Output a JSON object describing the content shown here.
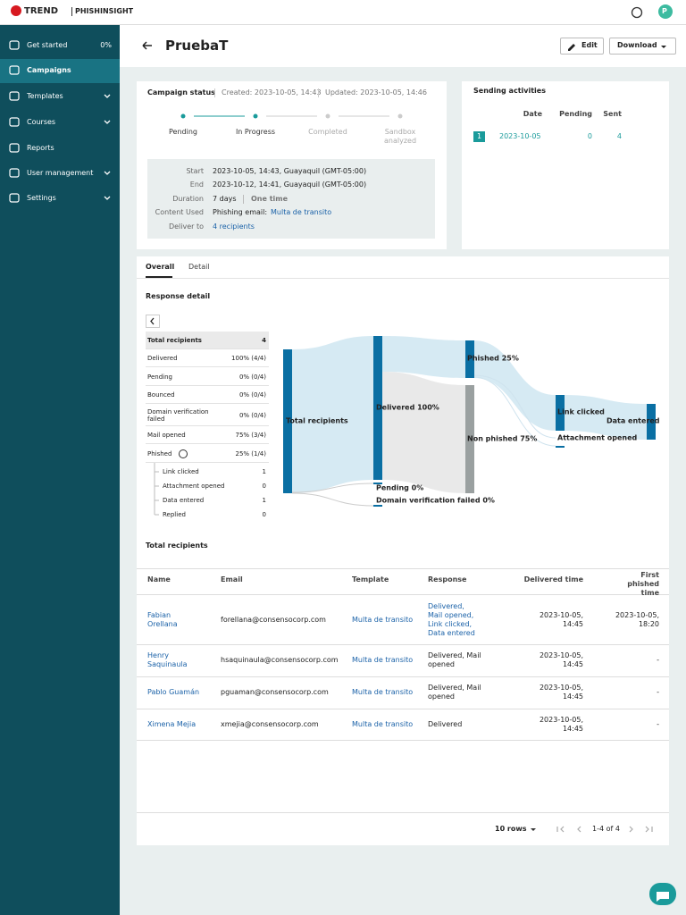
{
  "header": {
    "brand": "TREND",
    "product": "PHISHINSIGHT",
    "avatar": "P"
  },
  "sidebar": {
    "items": [
      {
        "label": "Get started",
        "badge": "0%"
      },
      {
        "label": "Campaigns",
        "active": true
      },
      {
        "label": "Templates",
        "expandable": true
      },
      {
        "label": "Courses",
        "expandable": true
      },
      {
        "label": "Reports"
      },
      {
        "label": "User management",
        "expandable": true
      },
      {
        "label": "Settings",
        "expandable": true
      }
    ]
  },
  "page": {
    "title": "PruebaT",
    "actions": [
      "Edit",
      "Download"
    ]
  },
  "campaign_status": {
    "title": "Campaign status",
    "created": "Created: 2023-10-05, 14:43",
    "updated": "Updated: 2023-10-05, 14:46",
    "steps": [
      "Pending",
      "In Progress",
      "Completed",
      "Sandbox analyzed"
    ],
    "details": [
      {
        "label": "Start",
        "value": "2023-10-05, 14:43, Guayaquil (GMT-05:00)"
      },
      {
        "label": "End",
        "value": "2023-10-12, 14:41, Guayaquil (GMT-05:00)"
      },
      {
        "label": "Duration",
        "value": "7 days",
        "extra": "One time"
      },
      {
        "label": "Content Used",
        "value": "Phishing email:",
        "link": "Multa de transito"
      },
      {
        "label": "Deliver to",
        "link": "4 recipients"
      }
    ]
  },
  "sending_activities": {
    "title": "Sending activities",
    "columns": [
      "Date",
      "Pending",
      "Sent"
    ],
    "rows": [
      {
        "index": "1",
        "date": "2023-10-05",
        "pending": "0",
        "sent": "4"
      }
    ]
  },
  "tabs": [
    "Overall",
    "Detail"
  ],
  "response_detail": {
    "title": "Response detail",
    "rows": [
      [
        "Total recipients",
        "4"
      ],
      [
        "Delivered",
        "100% (4/4)"
      ],
      [
        "Pending",
        "0% (0/4)"
      ],
      [
        "Bounced",
        "0% (0/4)"
      ],
      [
        "Domain verification failed",
        "0% (0/4)"
      ],
      [
        "Mail opened",
        "75% (3/4)"
      ],
      [
        "Phished",
        "25% (1/4)"
      ]
    ],
    "phished_breakdown": [
      [
        "Link clicked",
        "1"
      ],
      [
        "Attachment opened",
        "0"
      ],
      [
        "Data entered",
        "1"
      ],
      [
        "Replied",
        "0"
      ]
    ]
  },
  "sankey": {
    "nodes": [
      "Total recipients",
      "Delivered 100%",
      "Phished 25%",
      "Non phished 75%",
      "Pending 0%",
      "Domain verification failed 0%",
      "Link clicked",
      "Data entered",
      "Attachment opened"
    ]
  },
  "recipients": {
    "title": "Total recipients",
    "columns": [
      "Name",
      "Email",
      "Template",
      "Response",
      "Delivered time",
      "First phished time"
    ],
    "rows": [
      [
        "Fabian Orellana",
        "forellana@consensocorp.com",
        "Multa de transito",
        "Delivered, Mail opened, Link clicked, Data entered",
        "2023-10-05, 14:45",
        "2023-10-05, 18:20"
      ],
      [
        "Henry Saquinaula",
        "hsaquinaula@consensocorp.com",
        "Multa de transito",
        "Delivered, Mail opened",
        "2023-10-05, 14:45",
        "-"
      ],
      [
        "Pablo Guamán",
        "pguaman@consensocorp.com",
        "Multa de transito",
        "Delivered, Mail opened",
        "2023-10-05, 14:45",
        "-"
      ],
      [
        "Ximena Mejia",
        "xmejia@consensocorp.com",
        "Multa de transito",
        "Delivered",
        "2023-10-05, 14:45",
        "-"
      ]
    ]
  },
  "pagination": {
    "rows_per_page": "10 rows",
    "range": "1-4 of 4"
  }
}
